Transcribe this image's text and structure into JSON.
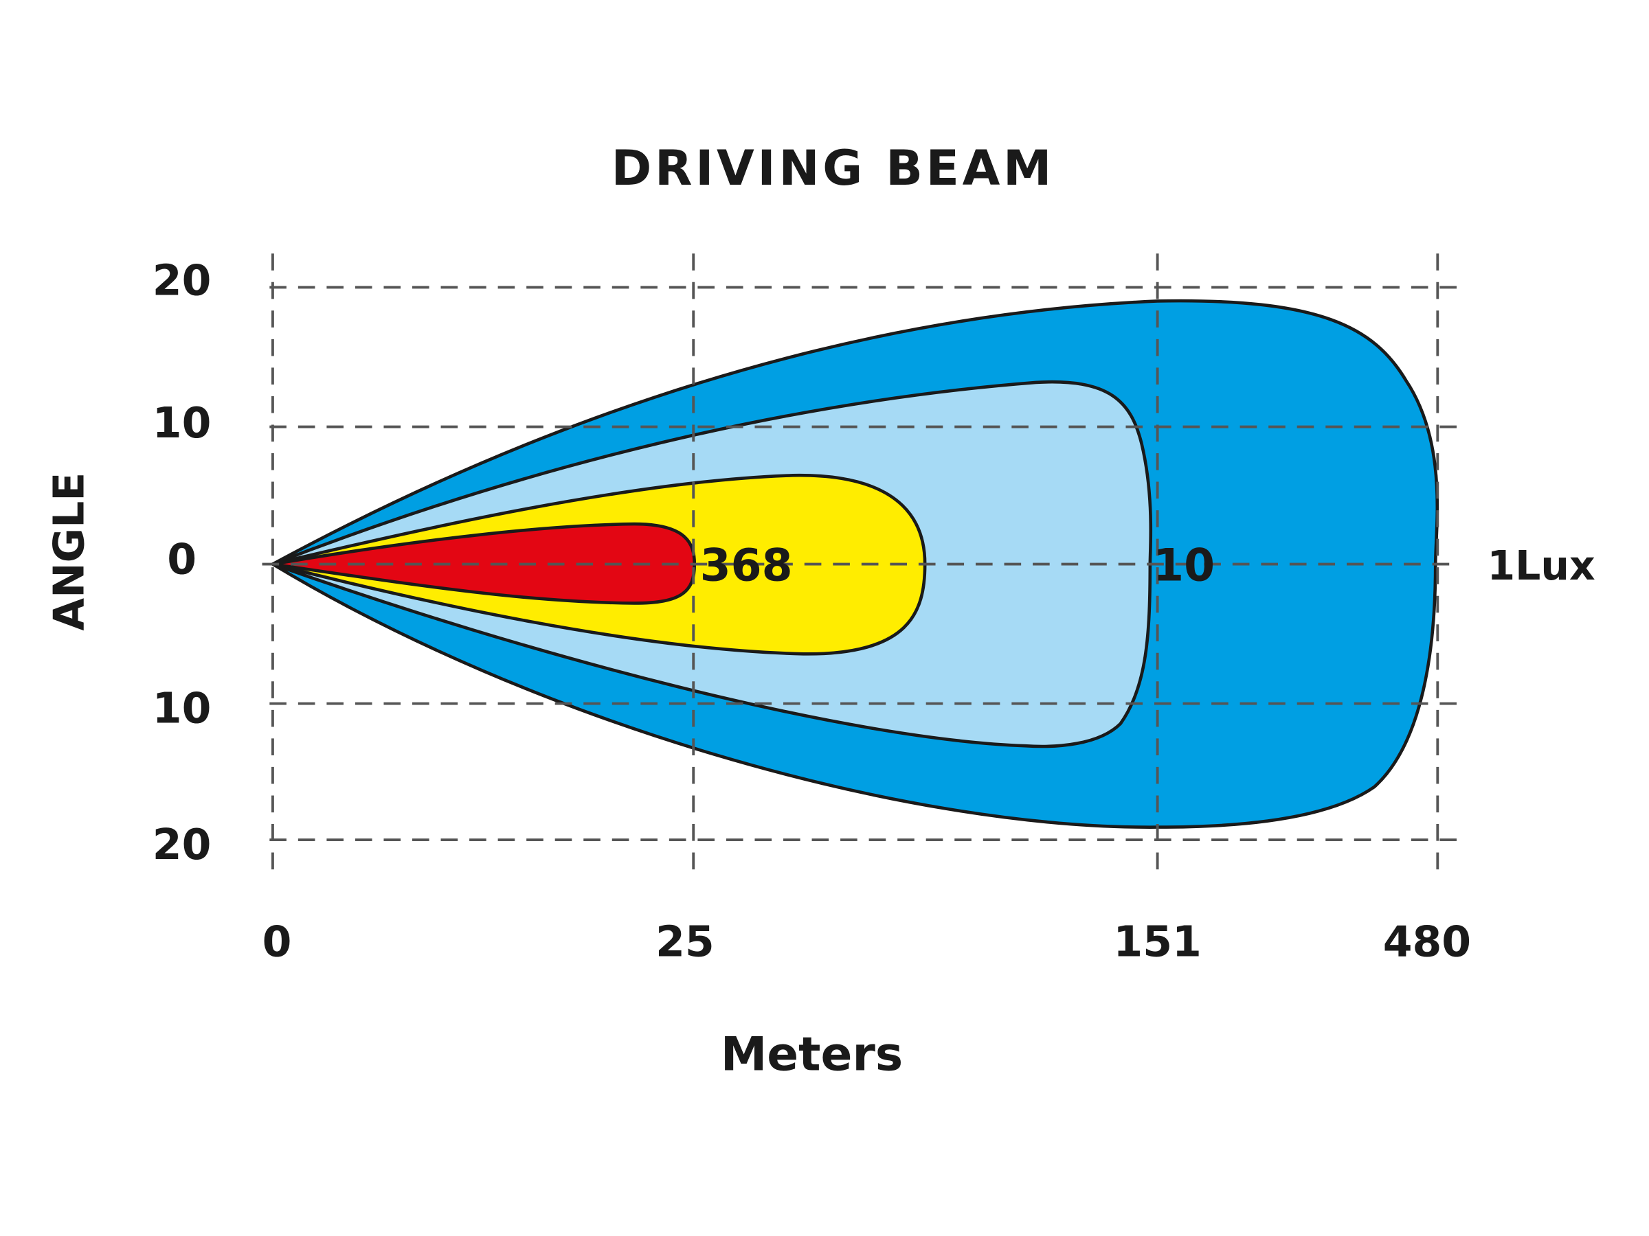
{
  "title": "DRIVING  BEAM",
  "y_axis": {
    "label": "ANGLE",
    "ticks": [
      "20",
      "10",
      "0",
      "10",
      "20"
    ]
  },
  "x_axis": {
    "label": "Meters",
    "ticks": [
      "0",
      "25",
      "151",
      "480"
    ]
  },
  "zones": [
    "368",
    "10",
    "1Lux"
  ]
}
